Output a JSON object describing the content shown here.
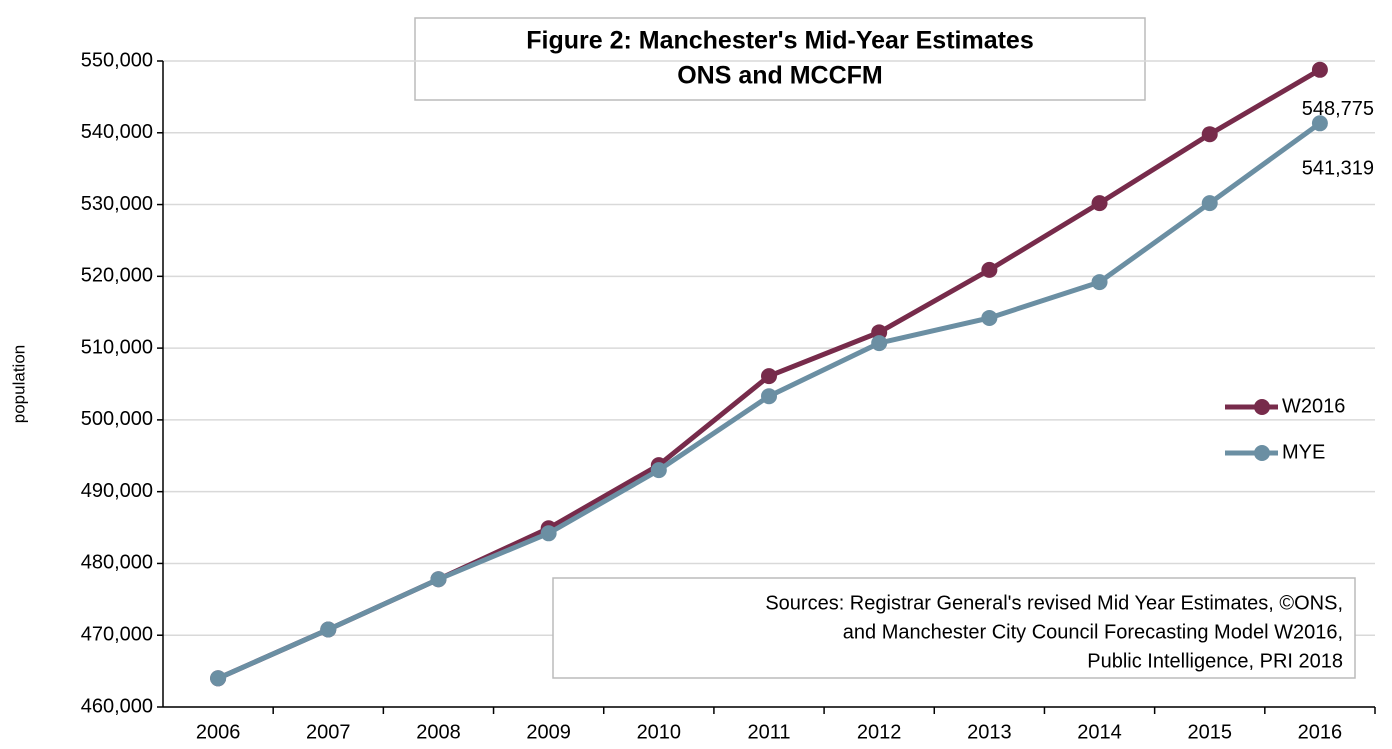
{
  "chart_data": {
    "type": "line",
    "title": [
      "Figure 2: Manchester's Mid-Year Estimates",
      "ONS and MCCFM"
    ],
    "ylabel": "population",
    "categories": [
      "2006",
      "2007",
      "2008",
      "2009",
      "2010",
      "2011",
      "2012",
      "2013",
      "2014",
      "2015",
      "2016"
    ],
    "series": [
      {
        "name": "W2016",
        "color": "#772b4b",
        "values": [
          464000,
          470800,
          477800,
          484900,
          493700,
          506100,
          512200,
          520900,
          530200,
          539800,
          548775
        ],
        "value_labels": [
          null,
          null,
          null,
          null,
          null,
          null,
          null,
          null,
          null,
          null,
          "548,775"
        ]
      },
      {
        "name": "MYE",
        "color": "#6b8fa3",
        "values": [
          464000,
          470800,
          477800,
          484200,
          493000,
          503300,
          510700,
          514200,
          519200,
          530200,
          541319
        ],
        "value_labels": [
          null,
          null,
          null,
          null,
          null,
          null,
          null,
          null,
          null,
          null,
          "541,319"
        ]
      }
    ],
    "ylim": [
      460000,
      550000
    ],
    "yticks": [
      {
        "value": 460000,
        "label": "460,000"
      },
      {
        "value": 470000,
        "label": "470,000"
      },
      {
        "value": 480000,
        "label": "480,000"
      },
      {
        "value": 490000,
        "label": "490,000"
      },
      {
        "value": 500000,
        "label": "500,000"
      },
      {
        "value": 510000,
        "label": "510,000"
      },
      {
        "value": 520000,
        "label": "520,000"
      },
      {
        "value": 530000,
        "label": "530,000"
      },
      {
        "value": 540000,
        "label": "540,000"
      },
      {
        "value": 550000,
        "label": "550,000"
      }
    ],
    "grid": true,
    "legend": "right",
    "source": [
      "Sources: Registrar General's revised Mid Year Estimates, ©ONS,",
      "and Manchester City Council Forecasting Model W2016,",
      "Public Intelligence,  PRI 2018"
    ]
  }
}
